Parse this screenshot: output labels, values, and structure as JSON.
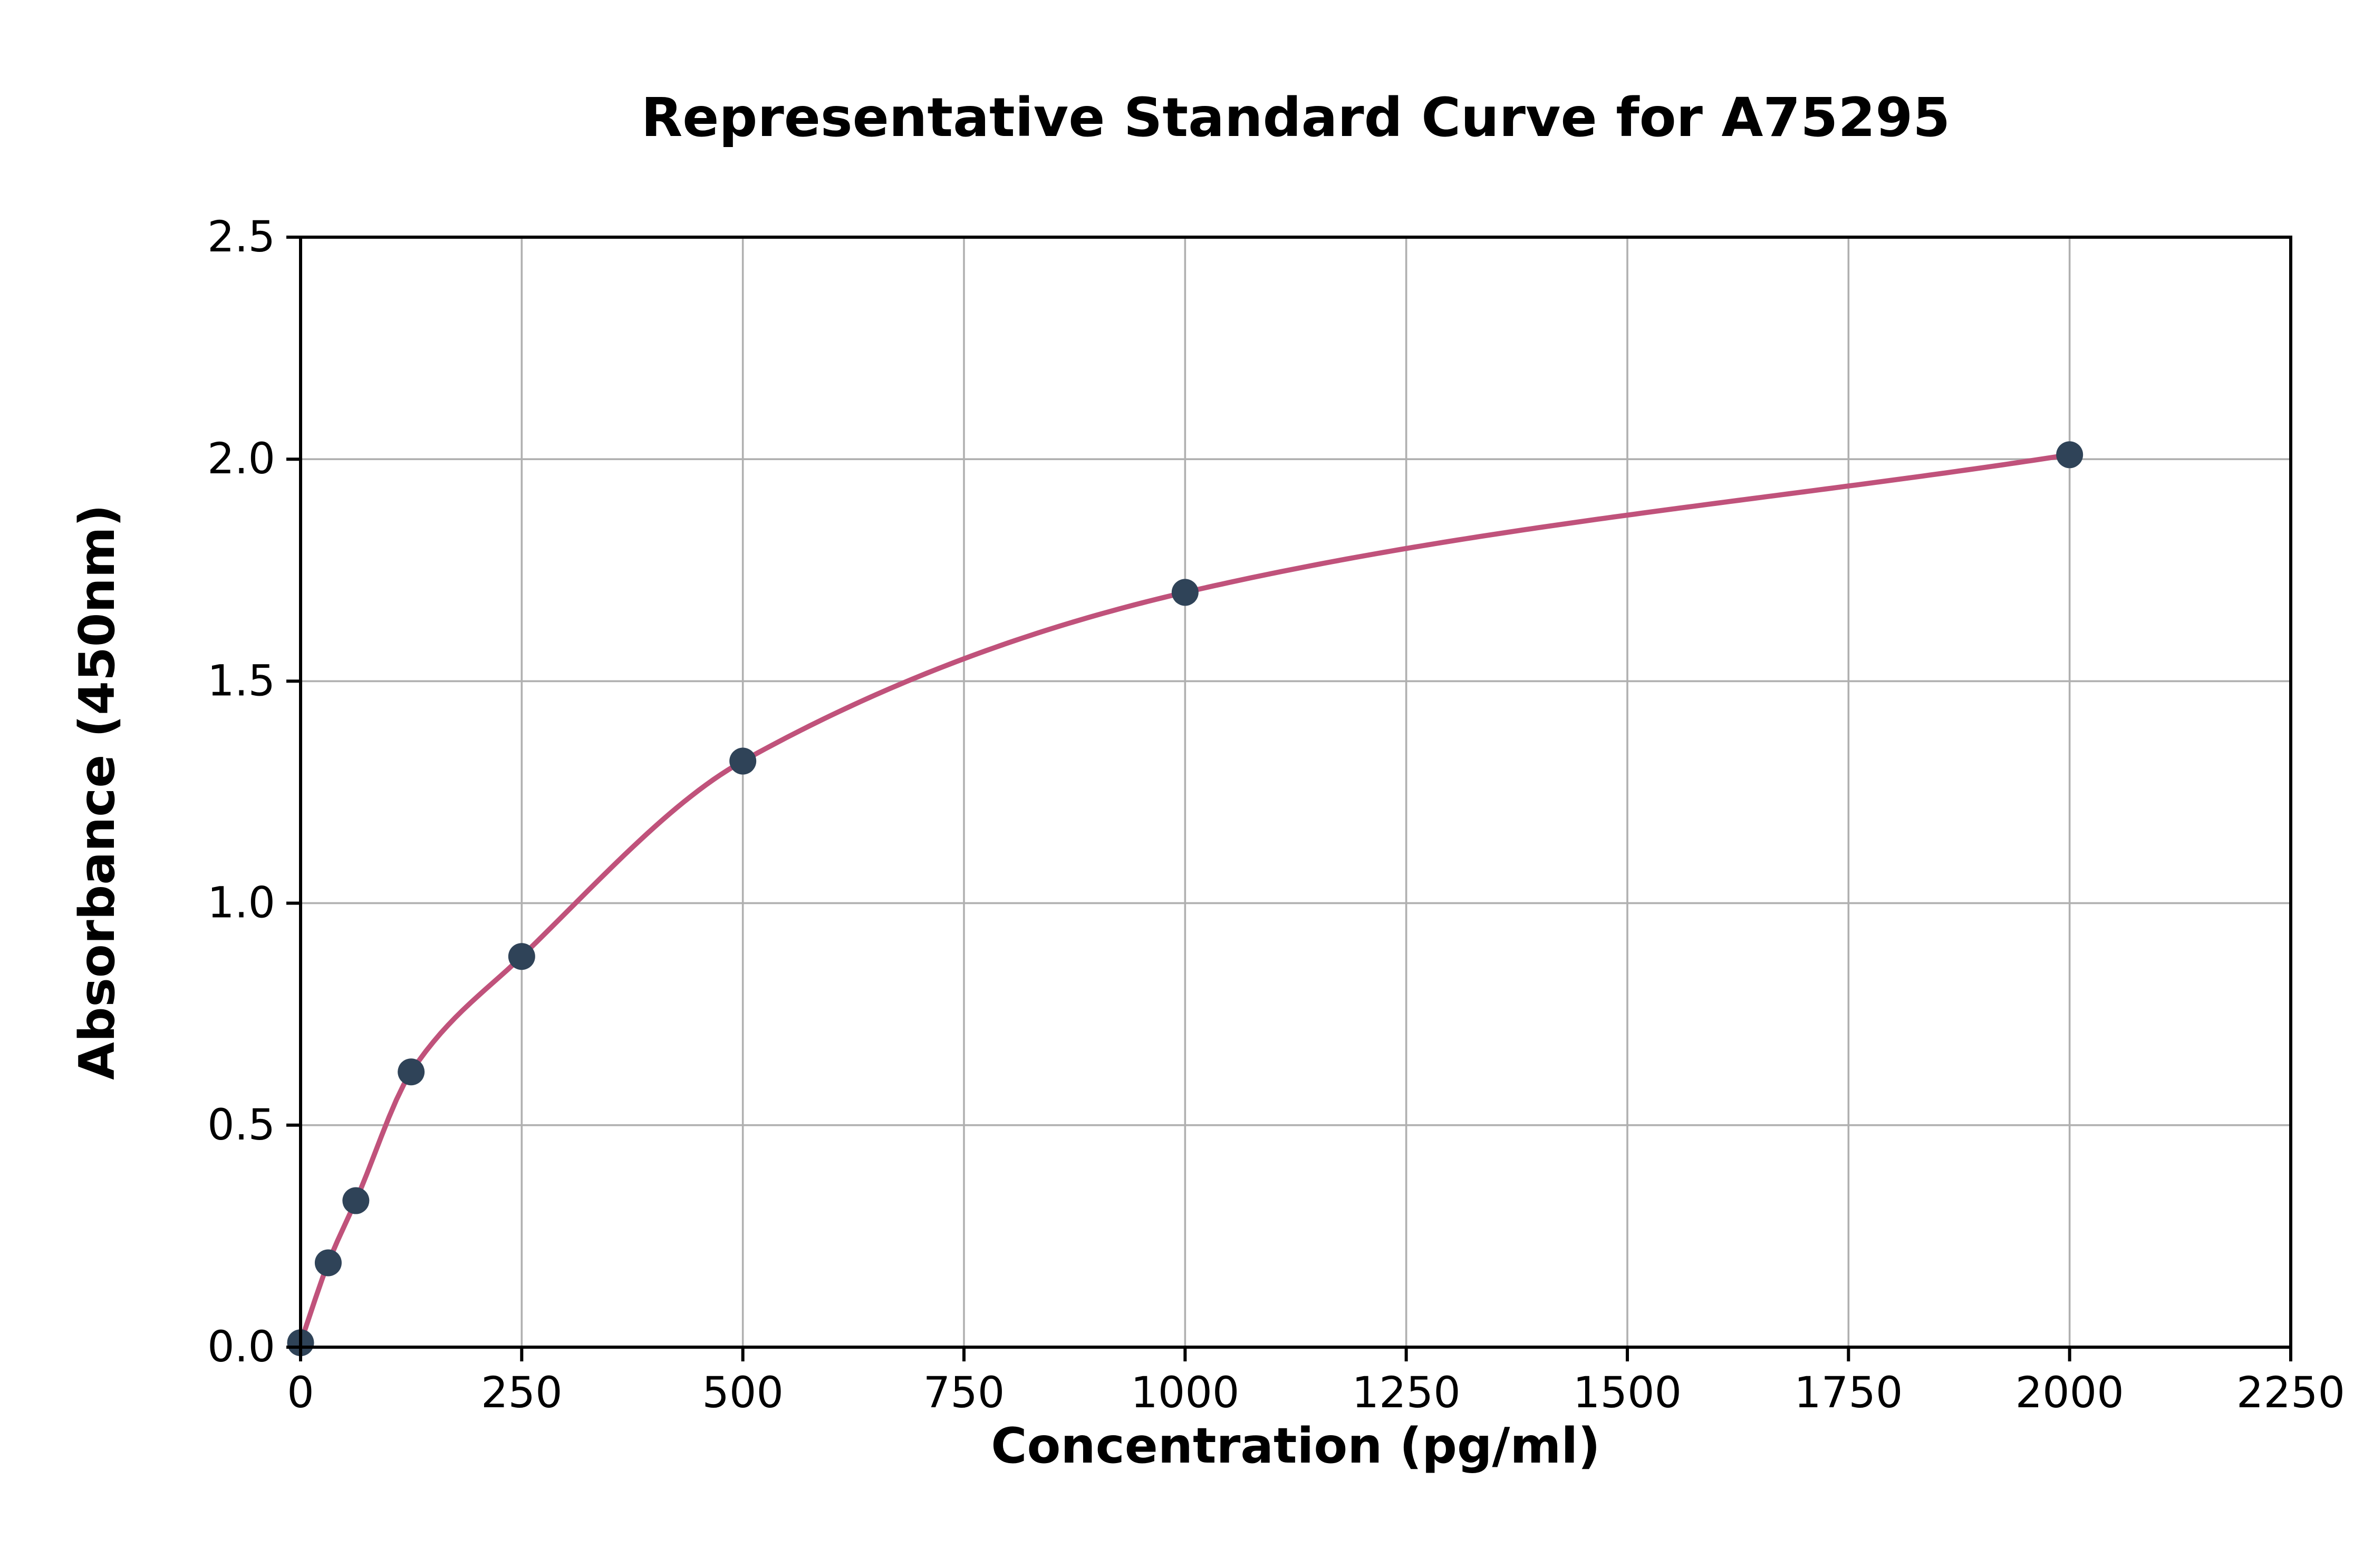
{
  "chart_data": {
    "type": "scatter",
    "title": "Representative Standard Curve for A75295",
    "xlabel": "Concentration (pg/ml)",
    "ylabel": "Absorbance (450nm)",
    "xlim": [
      0,
      2250
    ],
    "ylim": [
      0,
      2.5
    ],
    "x_ticks": [
      0,
      250,
      500,
      750,
      1000,
      1250,
      1500,
      1750,
      2000,
      2250
    ],
    "y_ticks": [
      0.0,
      0.5,
      1.0,
      1.5,
      2.0,
      2.5
    ],
    "grid": true,
    "legend": "none",
    "points": [
      {
        "x": 0,
        "y": 0.01
      },
      {
        "x": 31.25,
        "y": 0.19
      },
      {
        "x": 62.5,
        "y": 0.33
      },
      {
        "x": 125,
        "y": 0.62
      },
      {
        "x": 250,
        "y": 0.88
      },
      {
        "x": 500,
        "y": 1.32
      },
      {
        "x": 1000,
        "y": 1.7
      },
      {
        "x": 2000,
        "y": 2.01
      }
    ],
    "colors": {
      "curve": "#c0527b",
      "points": "#2f4358",
      "grid": "#b0b0b0",
      "axis": "#000000",
      "background": "#ffffff"
    }
  }
}
